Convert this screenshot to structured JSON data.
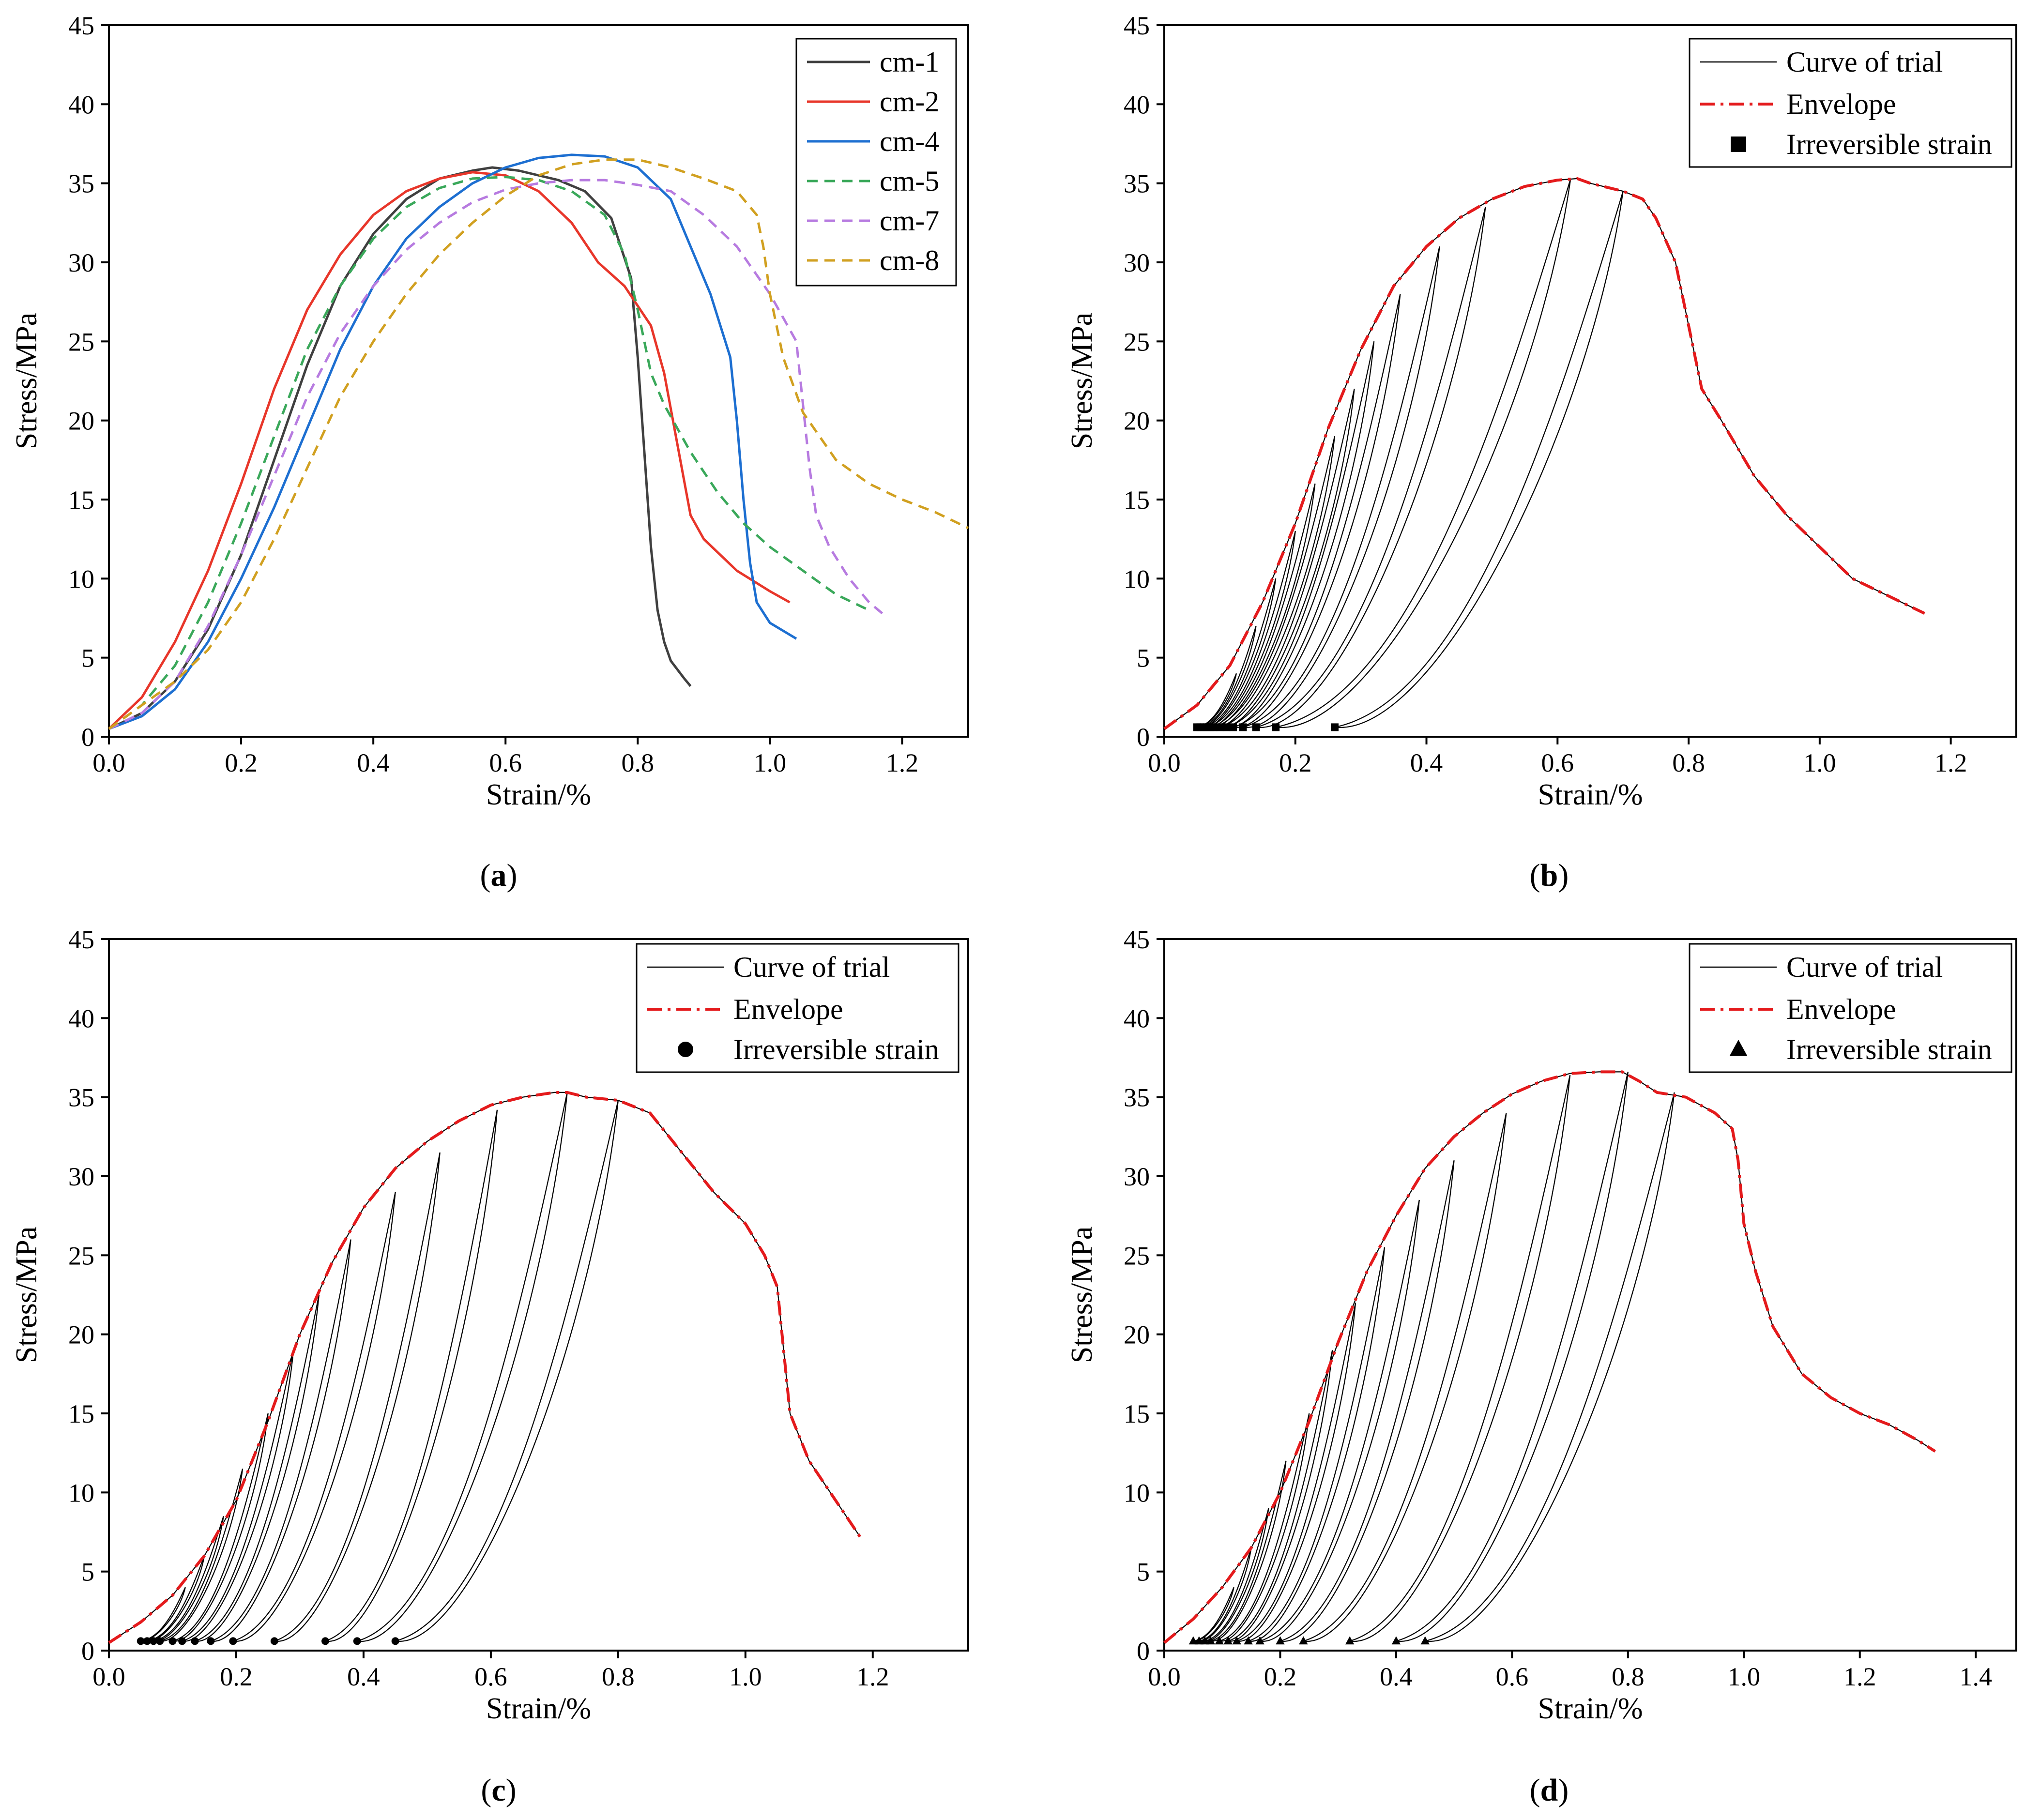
{
  "figure": {
    "captions": [
      "(a)",
      "(b)",
      "(c)",
      "(d)"
    ],
    "caption_parts": [
      {
        "open": "(",
        "letter": "a",
        "close": ")"
      },
      {
        "open": "(",
        "letter": "b",
        "close": ")"
      },
      {
        "open": "(",
        "letter": "c",
        "close": ")"
      },
      {
        "open": "(",
        "letter": "d",
        "close": ")"
      }
    ]
  },
  "chart_data": [
    {
      "id": "a",
      "type": "line",
      "title": "",
      "xlabel": "Strain/%",
      "ylabel": "Stress/MPa",
      "xlim": [
        0,
        1.3
      ],
      "ylim": [
        0,
        45
      ],
      "xticks": [
        "0.0",
        "0.2",
        "0.4",
        "0.6",
        "0.8",
        "1.0",
        "1.2"
      ],
      "yticks": [
        "0",
        "5",
        "10",
        "15",
        "20",
        "25",
        "30",
        "35",
        "40",
        "45"
      ],
      "legend_position": "top-right",
      "series": [
        {
          "name": "cm-1",
          "color": "#404040",
          "dash": "solid",
          "x": [
            0,
            0.05,
            0.1,
            0.15,
            0.2,
            0.25,
            0.3,
            0.35,
            0.4,
            0.45,
            0.5,
            0.55,
            0.58,
            0.62,
            0.68,
            0.72,
            0.76,
            0.79,
            0.8,
            0.81,
            0.82,
            0.83,
            0.84,
            0.85,
            0.87,
            0.88
          ],
          "y": [
            0.5,
            1.5,
            3.5,
            6.8,
            11.5,
            17.5,
            23.5,
            28.5,
            31.8,
            34,
            35.3,
            35.8,
            36,
            35.8,
            35.2,
            34.5,
            32.8,
            29,
            24,
            18,
            12,
            8,
            6,
            4.8,
            3.7,
            3.2
          ]
        },
        {
          "name": "cm-2",
          "color": "#e8362a",
          "dash": "solid",
          "x": [
            0,
            0.05,
            0.1,
            0.15,
            0.2,
            0.25,
            0.3,
            0.35,
            0.4,
            0.45,
            0.5,
            0.55,
            0.6,
            0.65,
            0.7,
            0.74,
            0.78,
            0.82,
            0.84,
            0.86,
            0.88,
            0.9,
            0.95,
            1.0,
            1.03
          ],
          "y": [
            0.5,
            2.5,
            6,
            10.5,
            16,
            22,
            27,
            30.5,
            33,
            34.5,
            35.3,
            35.7,
            35.5,
            34.5,
            32.5,
            30,
            28.5,
            26,
            23,
            18.5,
            14,
            12.5,
            10.5,
            9.2,
            8.5
          ]
        },
        {
          "name": "cm-4",
          "color": "#1d6fd1",
          "dash": "solid",
          "x": [
            0,
            0.05,
            0.1,
            0.15,
            0.2,
            0.25,
            0.3,
            0.35,
            0.4,
            0.45,
            0.5,
            0.55,
            0.6,
            0.65,
            0.7,
            0.75,
            0.8,
            0.85,
            0.88,
            0.91,
            0.94,
            0.95,
            0.96,
            0.97,
            0.98,
            1.0,
            1.04
          ],
          "y": [
            0.5,
            1.3,
            3,
            6,
            10,
            14.5,
            19.5,
            24.5,
            28.5,
            31.5,
            33.5,
            35,
            36,
            36.6,
            36.8,
            36.7,
            36,
            34,
            31,
            28,
            24,
            20,
            15,
            11,
            8.5,
            7.2,
            6.2
          ]
        },
        {
          "name": "cm-5",
          "color": "#3aa85a",
          "dash": "dashed",
          "x": [
            0,
            0.05,
            0.1,
            0.15,
            0.2,
            0.25,
            0.3,
            0.35,
            0.4,
            0.45,
            0.5,
            0.55,
            0.6,
            0.65,
            0.7,
            0.75,
            0.78,
            0.8,
            0.82,
            0.84,
            0.88,
            0.92,
            0.96,
            1.0,
            1.05,
            1.1,
            1.15
          ],
          "y": [
            0.5,
            2,
            4.5,
            8.5,
            13.5,
            19,
            24.5,
            28.5,
            31.5,
            33.5,
            34.7,
            35.3,
            35.4,
            35.2,
            34.5,
            33,
            30.5,
            27,
            23,
            21,
            18,
            15.5,
            13.5,
            12,
            10.5,
            9,
            8
          ]
        },
        {
          "name": "cm-7",
          "color": "#b77be0",
          "dash": "dashed",
          "x": [
            0,
            0.05,
            0.1,
            0.15,
            0.2,
            0.25,
            0.3,
            0.35,
            0.4,
            0.45,
            0.5,
            0.55,
            0.6,
            0.65,
            0.7,
            0.75,
            0.8,
            0.85,
            0.9,
            0.95,
            1.0,
            1.04,
            1.05,
            1.06,
            1.07,
            1.09,
            1.12,
            1.15,
            1.17
          ],
          "y": [
            0.5,
            1.5,
            3.5,
            7,
            11.5,
            16.5,
            21.5,
            25.5,
            28.5,
            30.8,
            32.5,
            33.8,
            34.6,
            35,
            35.2,
            35.2,
            34.9,
            34.5,
            33,
            31,
            28,
            25,
            21,
            17,
            14,
            12,
            10,
            8.5,
            7.8
          ]
        },
        {
          "name": "cm-8",
          "color": "#d1a020",
          "dash": "dashed",
          "x": [
            0,
            0.05,
            0.1,
            0.15,
            0.2,
            0.25,
            0.3,
            0.35,
            0.4,
            0.45,
            0.5,
            0.55,
            0.6,
            0.65,
            0.7,
            0.75,
            0.8,
            0.85,
            0.9,
            0.95,
            0.98,
            0.99,
            1.0,
            1.02,
            1.05,
            1.1,
            1.15,
            1.2,
            1.25,
            1.3
          ],
          "y": [
            0.5,
            2,
            3.5,
            5.5,
            8.5,
            12.5,
            17,
            21.5,
            25,
            28,
            30.5,
            32.5,
            34.2,
            35.5,
            36.2,
            36.5,
            36.5,
            36,
            35.3,
            34.5,
            33,
            31,
            28,
            24,
            20.5,
            17.5,
            16,
            15,
            14.2,
            13.2
          ]
        }
      ]
    },
    {
      "id": "b",
      "type": "line",
      "title": "",
      "xlabel": "Strain/%",
      "ylabel": "Stress/MPa",
      "xlim": [
        0,
        1.3
      ],
      "ylim": [
        0,
        45
      ],
      "xticks": [
        "0.0",
        "0.2",
        "0.4",
        "0.6",
        "0.8",
        "1.0",
        "1.2"
      ],
      "yticks": [
        "0",
        "5",
        "10",
        "15",
        "20",
        "25",
        "30",
        "35",
        "40",
        "45"
      ],
      "legend_position": "top-right",
      "legend": [
        "Curve of trial",
        "Envelope",
        "Irreversible strain"
      ],
      "marker": "square",
      "envelope": {
        "x": [
          0,
          0.05,
          0.1,
          0.15,
          0.2,
          0.25,
          0.3,
          0.35,
          0.4,
          0.45,
          0.5,
          0.55,
          0.6,
          0.63,
          0.65,
          0.7,
          0.73,
          0.75,
          0.78,
          0.8,
          0.82,
          0.85,
          0.9,
          0.95,
          1.0,
          1.05,
          1.1,
          1.16
        ],
        "y": [
          0.5,
          2,
          4.5,
          8.5,
          13.5,
          19.5,
          24.5,
          28.5,
          31,
          32.8,
          34,
          34.8,
          35.2,
          35.3,
          35,
          34.5,
          34,
          32.8,
          30,
          26,
          22,
          20,
          16.5,
          14,
          12,
          10,
          9,
          7.8
        ]
      },
      "cycles": [
        {
          "x_residual": 0.05,
          "peak_x": 0.11,
          "peak_y": 4
        },
        {
          "x_residual": 0.055,
          "peak_x": 0.14,
          "peak_y": 7
        },
        {
          "x_residual": 0.06,
          "peak_x": 0.17,
          "peak_y": 10
        },
        {
          "x_residual": 0.065,
          "peak_x": 0.2,
          "peak_y": 13
        },
        {
          "x_residual": 0.07,
          "peak_x": 0.23,
          "peak_y": 16
        },
        {
          "x_residual": 0.075,
          "peak_x": 0.26,
          "peak_y": 19
        },
        {
          "x_residual": 0.085,
          "peak_x": 0.29,
          "peak_y": 22
        },
        {
          "x_residual": 0.095,
          "peak_x": 0.32,
          "peak_y": 25
        },
        {
          "x_residual": 0.105,
          "peak_x": 0.36,
          "peak_y": 28
        },
        {
          "x_residual": 0.12,
          "peak_x": 0.42,
          "peak_y": 31
        },
        {
          "x_residual": 0.14,
          "peak_x": 0.49,
          "peak_y": 33.5
        },
        {
          "x_residual": 0.17,
          "peak_x": 0.62,
          "peak_y": 35.3
        },
        {
          "x_residual": 0.26,
          "peak_x": 0.7,
          "peak_y": 34.5
        }
      ]
    },
    {
      "id": "c",
      "type": "line",
      "title": "",
      "xlabel": "Strain/%",
      "ylabel": "Stress/MPa",
      "xlim": [
        0,
        1.35
      ],
      "ylim": [
        0,
        45
      ],
      "xticks": [
        "0.0",
        "0.2",
        "0.4",
        "0.6",
        "0.8",
        "1.0",
        "1.2"
      ],
      "yticks": [
        "0",
        "5",
        "10",
        "15",
        "20",
        "25",
        "30",
        "35",
        "40",
        "45"
      ],
      "legend_position": "top-right",
      "legend": [
        "Curve of trial",
        "Envelope",
        "Irreversible strain"
      ],
      "marker": "circle",
      "envelope": {
        "x": [
          0,
          0.05,
          0.1,
          0.15,
          0.2,
          0.25,
          0.3,
          0.35,
          0.4,
          0.45,
          0.5,
          0.55,
          0.6,
          0.65,
          0.7,
          0.72,
          0.75,
          0.8,
          0.85,
          0.88,
          0.9,
          0.95,
          1.0,
          1.03,
          1.05,
          1.06,
          1.07,
          1.1,
          1.15,
          1.18
        ],
        "y": [
          0.5,
          1.8,
          3.5,
          6,
          9.5,
          14.5,
          20,
          24.5,
          28,
          30.5,
          32.2,
          33.5,
          34.5,
          35,
          35.3,
          35.3,
          35,
          34.8,
          34,
          32.5,
          31.5,
          29,
          27,
          25,
          23,
          19,
          15,
          12,
          9,
          7.2
        ]
      },
      "cycles": [
        {
          "x_residual": 0.05,
          "peak_x": 0.12,
          "peak_y": 4
        },
        {
          "x_residual": 0.06,
          "peak_x": 0.15,
          "peak_y": 6
        },
        {
          "x_residual": 0.07,
          "peak_x": 0.18,
          "peak_y": 8.5
        },
        {
          "x_residual": 0.08,
          "peak_x": 0.21,
          "peak_y": 11.5
        },
        {
          "x_residual": 0.1,
          "peak_x": 0.25,
          "peak_y": 15
        },
        {
          "x_residual": 0.115,
          "peak_x": 0.29,
          "peak_y": 19
        },
        {
          "x_residual": 0.135,
          "peak_x": 0.33,
          "peak_y": 22.5
        },
        {
          "x_residual": 0.16,
          "peak_x": 0.38,
          "peak_y": 26
        },
        {
          "x_residual": 0.195,
          "peak_x": 0.45,
          "peak_y": 29
        },
        {
          "x_residual": 0.26,
          "peak_x": 0.52,
          "peak_y": 31.5
        },
        {
          "x_residual": 0.34,
          "peak_x": 0.61,
          "peak_y": 34.2
        },
        {
          "x_residual": 0.39,
          "peak_x": 0.72,
          "peak_y": 35.3
        },
        {
          "x_residual": 0.45,
          "peak_x": 0.8,
          "peak_y": 34.8
        }
      ]
    },
    {
      "id": "d",
      "type": "line",
      "title": "",
      "xlabel": "Strain/%",
      "ylabel": "Stress/MPa",
      "xlim": [
        0,
        1.47
      ],
      "ylim": [
        0,
        45
      ],
      "xticks": [
        "0.0",
        "0.2",
        "0.4",
        "0.6",
        "0.8",
        "1.0",
        "1.2",
        "1.4"
      ],
      "yticks": [
        "0",
        "5",
        "10",
        "15",
        "20",
        "25",
        "30",
        "35",
        "40",
        "45"
      ],
      "legend_position": "top-right",
      "legend": [
        "Curve of trial",
        "Envelope",
        "Irreversible strain"
      ],
      "marker": "triangle",
      "envelope": {
        "x": [
          0,
          0.05,
          0.1,
          0.15,
          0.2,
          0.25,
          0.3,
          0.35,
          0.4,
          0.45,
          0.5,
          0.55,
          0.6,
          0.65,
          0.7,
          0.75,
          0.79,
          0.82,
          0.85,
          0.9,
          0.95,
          0.98,
          0.99,
          1.0,
          1.02,
          1.05,
          1.1,
          1.15,
          1.2,
          1.25,
          1.3,
          1.33
        ],
        "y": [
          0.5,
          2,
          4,
          6.5,
          10,
          14.5,
          19.5,
          24,
          27.5,
          30.5,
          32.5,
          34,
          35.2,
          36,
          36.5,
          36.6,
          36.6,
          36,
          35.3,
          35,
          34,
          33,
          31,
          27,
          24,
          20.5,
          17.5,
          16,
          15,
          14.3,
          13.3,
          12.6
        ]
      },
      "cycles": [
        {
          "x_residual": 0.05,
          "peak_x": 0.12,
          "peak_y": 4
        },
        {
          "x_residual": 0.06,
          "peak_x": 0.15,
          "peak_y": 6.5
        },
        {
          "x_residual": 0.07,
          "peak_x": 0.18,
          "peak_y": 9
        },
        {
          "x_residual": 0.08,
          "peak_x": 0.21,
          "peak_y": 12
        },
        {
          "x_residual": 0.095,
          "peak_x": 0.25,
          "peak_y": 15
        },
        {
          "x_residual": 0.11,
          "peak_x": 0.29,
          "peak_y": 19
        },
        {
          "x_residual": 0.125,
          "peak_x": 0.33,
          "peak_y": 22
        },
        {
          "x_residual": 0.145,
          "peak_x": 0.38,
          "peak_y": 25.5
        },
        {
          "x_residual": 0.165,
          "peak_x": 0.44,
          "peak_y": 28.5
        },
        {
          "x_residual": 0.2,
          "peak_x": 0.5,
          "peak_y": 31
        },
        {
          "x_residual": 0.24,
          "peak_x": 0.59,
          "peak_y": 34
        },
        {
          "x_residual": 0.32,
          "peak_x": 0.7,
          "peak_y": 36.4
        },
        {
          "x_residual": 0.4,
          "peak_x": 0.8,
          "peak_y": 36.6
        },
        {
          "x_residual": 0.45,
          "peak_x": 0.88,
          "peak_y": 35.3
        }
      ]
    }
  ]
}
